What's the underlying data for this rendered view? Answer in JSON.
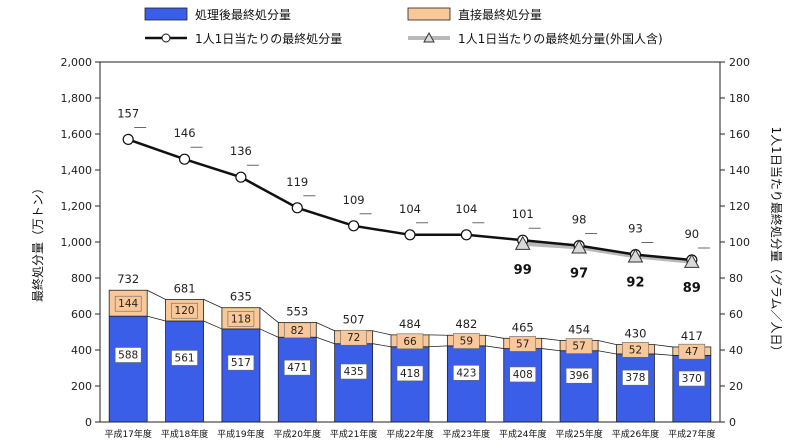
{
  "chart_data": {
    "type": "bar",
    "stacked": true,
    "categories": [
      "平成17年度",
      "平成18年度",
      "平成19年度",
      "平成20年度",
      "平成21年度",
      "平成22年度",
      "平成23年度",
      "平成24年度",
      "平成25年度",
      "平成26年度",
      "平成27年度"
    ],
    "series": [
      {
        "name": "処理後最終処分量",
        "axis": "left",
        "color": "#3a5ee8",
        "values": [
          588,
          561,
          517,
          471,
          435,
          418,
          423,
          408,
          396,
          378,
          370
        ]
      },
      {
        "name": "直接最終処分量",
        "axis": "left",
        "color": "#f9c89a",
        "values": [
          144,
          120,
          118,
          82,
          72,
          66,
          59,
          57,
          57,
          52,
          47
        ]
      }
    ],
    "totals": [
      732,
      681,
      635,
      553,
      507,
      484,
      482,
      465,
      454,
      430,
      417
    ],
    "lines": [
      {
        "name": "1人1日当たりの最終処分量",
        "axis": "right",
        "marker": "circle",
        "values": [
          157,
          146,
          136,
          119,
          109,
          104,
          104,
          101,
          98,
          93,
          90
        ]
      },
      {
        "name": "1人1日当たりの最終処分量(外国人含)",
        "axis": "right",
        "marker": "triangle",
        "start_index": 7,
        "values": [
          99,
          97,
          92,
          89
        ]
      }
    ],
    "ylabel": "最終処分量（万トン）",
    "y2label": "1人1日当たり最終処分量（グラム／人日）",
    "ylim": [
      0,
      2000
    ],
    "y2lim": [
      0,
      200
    ],
    "yticks": [
      "0",
      "200",
      "400",
      "600",
      "800",
      "1,000",
      "1,200",
      "1,400",
      "1,600",
      "1,800",
      "2,000"
    ],
    "y2ticks": [
      "0",
      "20",
      "40",
      "60",
      "80",
      "100",
      "120",
      "140",
      "160",
      "180",
      "200"
    ],
    "grid": false,
    "legend_position": "top"
  }
}
